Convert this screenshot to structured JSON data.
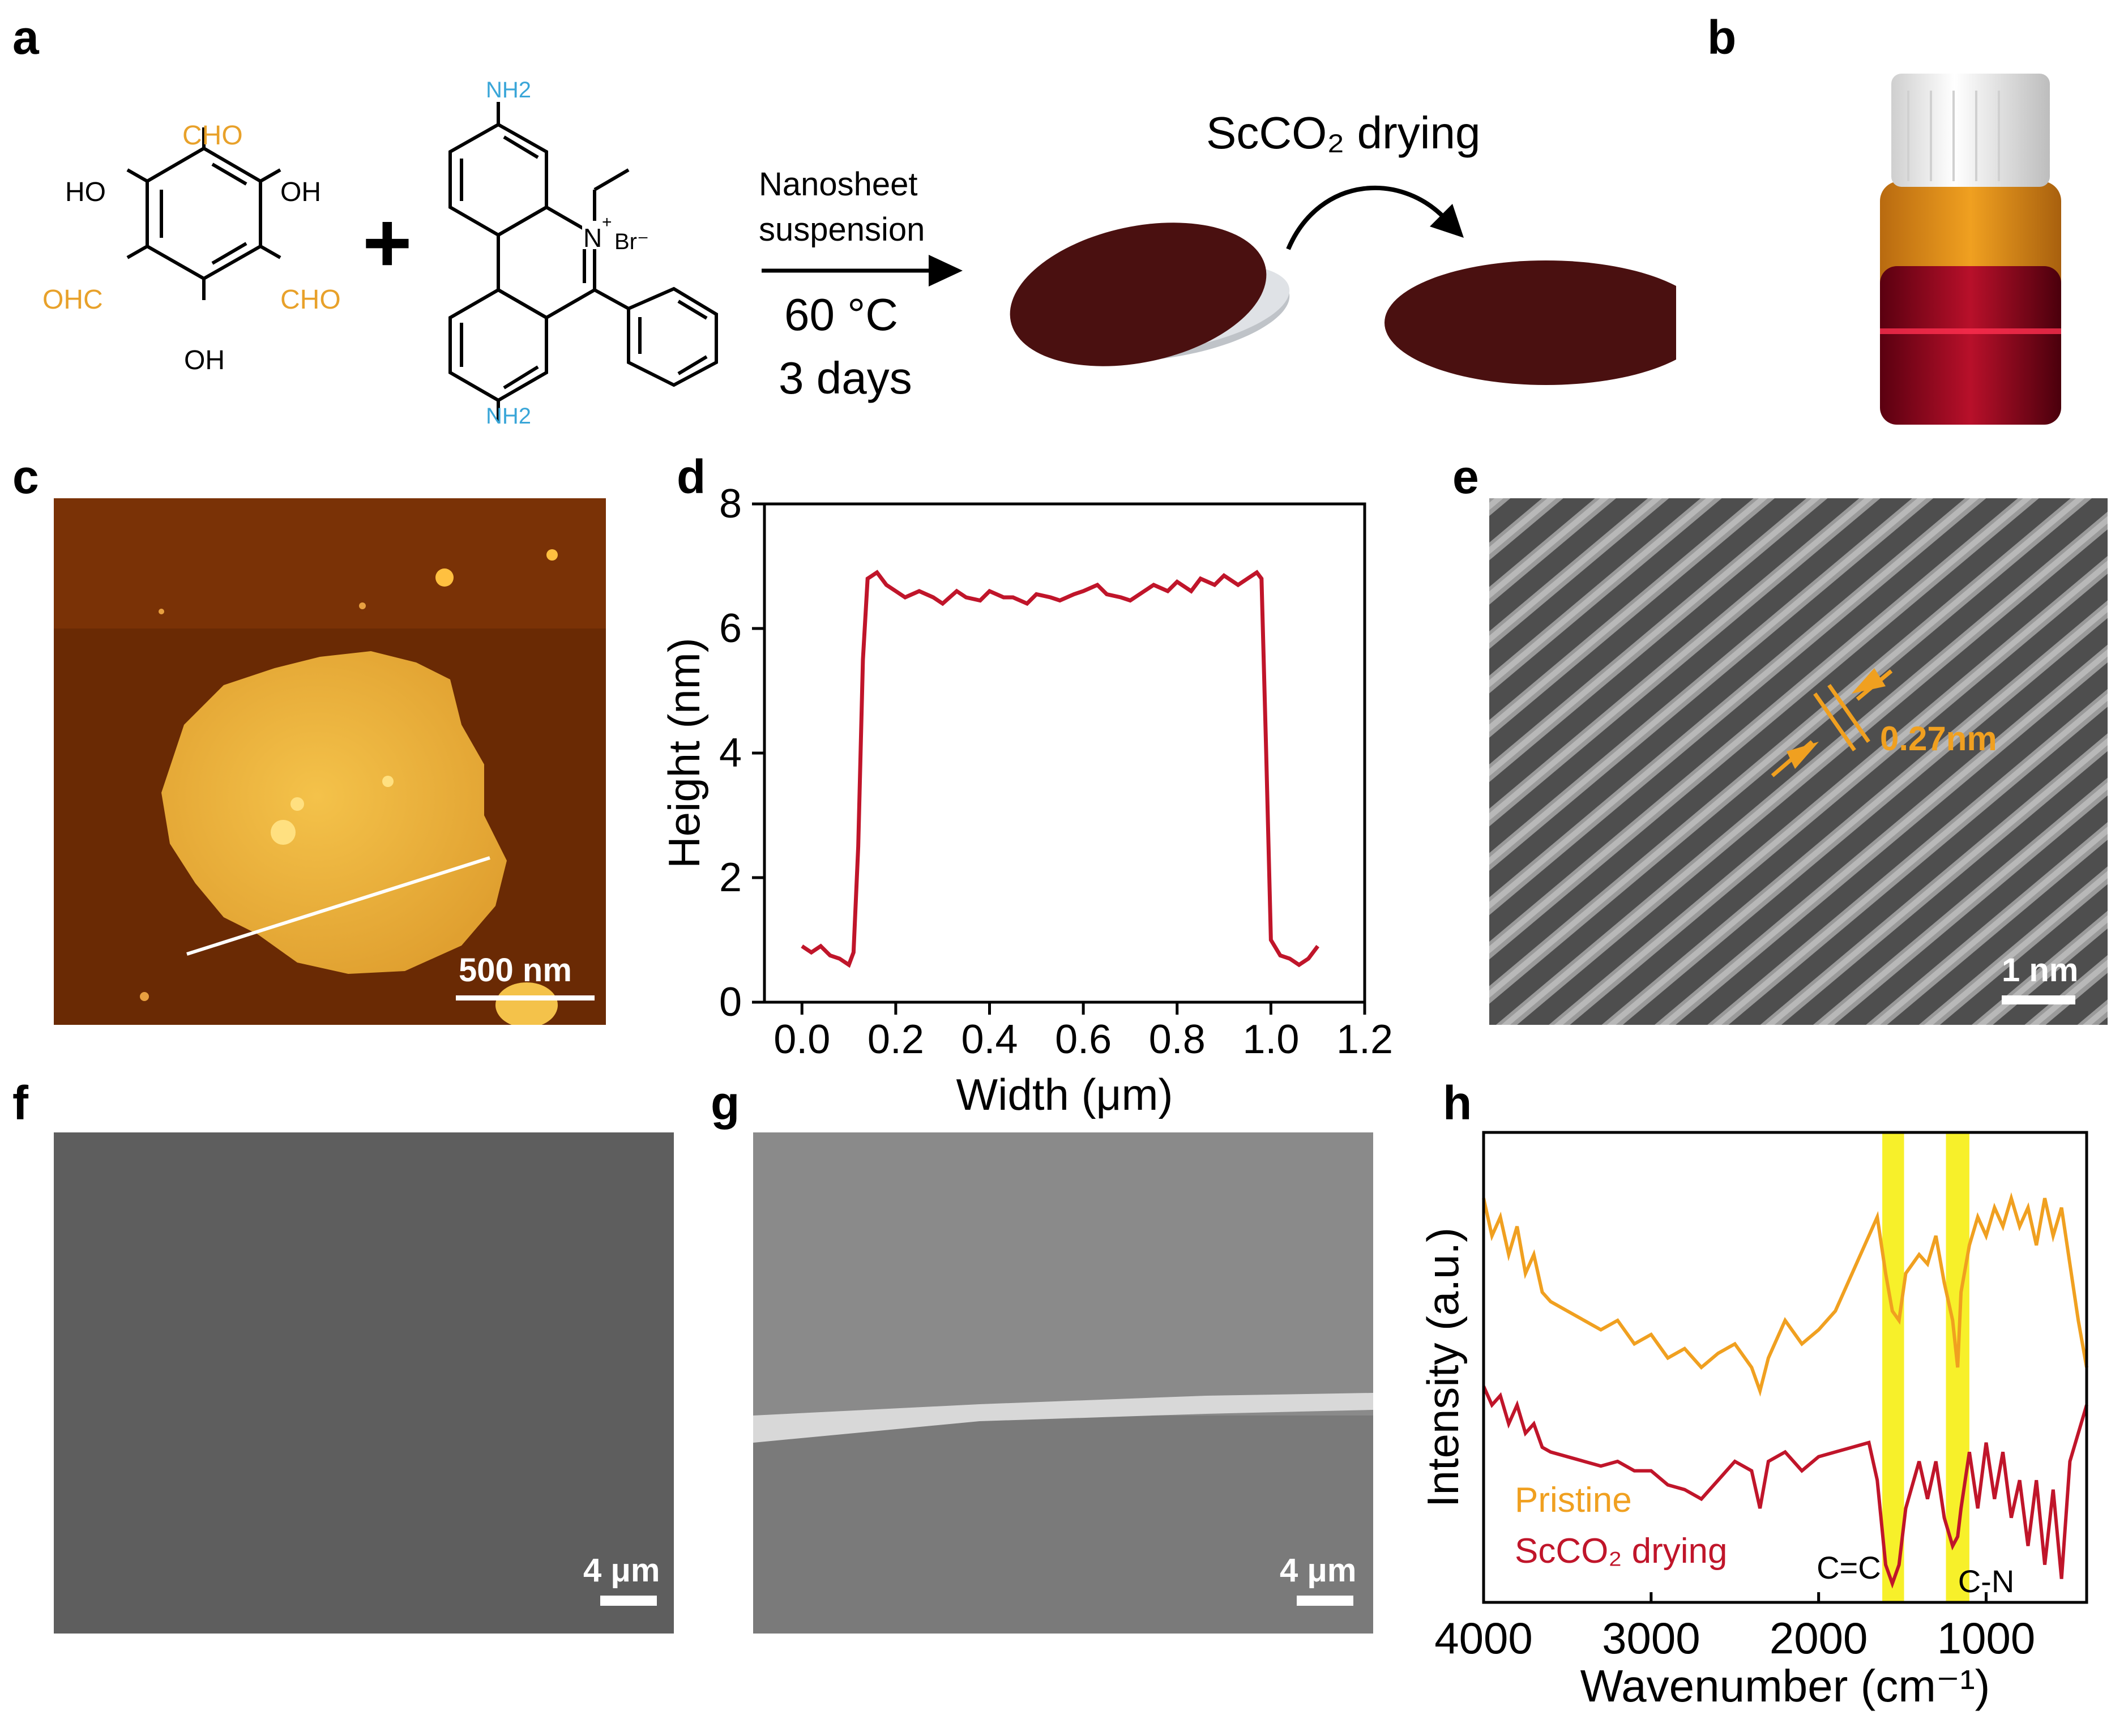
{
  "panel_labels": {
    "a": "a",
    "b": "b",
    "c": "c",
    "d": "d",
    "e": "e",
    "f": "f",
    "g": "g",
    "h": "h"
  },
  "colors": {
    "aldehyde": "#e8a12a",
    "amine": "#3aa6d8",
    "membrane": "#4a1010",
    "trace_red": "#c0152a",
    "trace_orange": "#f0a020",
    "highlight": "#f7f02a"
  },
  "scheme": {
    "aldehyde_groups": {
      "top": "CHO",
      "left": "OHC",
      "right": "CHO"
    },
    "hydroxyl_groups": {
      "upper_left": "HO",
      "upper_right": "OH",
      "bottom": "OH"
    },
    "plus": "+",
    "amine_top": "NH2",
    "amine_bottom": "NH2",
    "nitrogen": "N",
    "nitrogen_charge": "+",
    "counterion": "Br⁻",
    "condition_line1": "Nanosheet",
    "condition_line2": "suspension",
    "condition_temp": "60 °C",
    "condition_time": "3 days",
    "drying_label": "ScCO₂ drying"
  },
  "afm": {
    "scale_label": "500 nm"
  },
  "tem": {
    "spacing_label": "0.27nm",
    "scale_label": "1 nm"
  },
  "sem_top": {
    "scale_label": "4 μm"
  },
  "sem_cross": {
    "scale_label": "4 μm"
  },
  "chart_data": [
    {
      "type": "line",
      "panel": "d",
      "xlabel": "Width (μm)",
      "ylabel": "Height (nm)",
      "xlim": [
        -0.08,
        1.2
      ],
      "ylim": [
        0,
        8
      ],
      "xticks": [
        0.0,
        0.2,
        0.4,
        0.6,
        0.8,
        1.0,
        1.2
      ],
      "yticks": [
        0,
        2,
        4,
        6,
        8
      ],
      "xtick_labels": [
        "0.0",
        "0.2",
        "0.4",
        "0.6",
        "0.8",
        "1.0",
        "1.2"
      ],
      "ytick_labels": [
        "0",
        "2",
        "4",
        "6",
        "8"
      ],
      "series": [
        {
          "color": "#c0152a",
          "x": [
            0.0,
            0.02,
            0.04,
            0.06,
            0.08,
            0.1,
            0.11,
            0.12,
            0.13,
            0.14,
            0.16,
            0.18,
            0.2,
            0.22,
            0.25,
            0.28,
            0.3,
            0.33,
            0.35,
            0.38,
            0.4,
            0.43,
            0.45,
            0.48,
            0.5,
            0.53,
            0.55,
            0.58,
            0.6,
            0.63,
            0.65,
            0.68,
            0.7,
            0.73,
            0.75,
            0.78,
            0.8,
            0.83,
            0.85,
            0.88,
            0.9,
            0.93,
            0.95,
            0.97,
            0.98,
            0.99,
            1.0,
            1.02,
            1.04,
            1.06,
            1.08,
            1.1
          ],
          "y": [
            0.9,
            0.8,
            0.9,
            0.75,
            0.7,
            0.6,
            0.8,
            2.5,
            5.5,
            6.8,
            6.9,
            6.7,
            6.6,
            6.5,
            6.6,
            6.5,
            6.4,
            6.6,
            6.5,
            6.45,
            6.6,
            6.5,
            6.5,
            6.4,
            6.55,
            6.5,
            6.45,
            6.55,
            6.6,
            6.7,
            6.55,
            6.5,
            6.45,
            6.6,
            6.7,
            6.6,
            6.75,
            6.6,
            6.8,
            6.7,
            6.85,
            6.7,
            6.8,
            6.9,
            6.8,
            4.0,
            1.0,
            0.75,
            0.7,
            0.6,
            0.7,
            0.9
          ]
        }
      ]
    },
    {
      "type": "line",
      "panel": "h",
      "xlabel": "Wavenumber (cm⁻¹)",
      "ylabel": "Intensity (a.u.)",
      "xlim": [
        4000,
        400
      ],
      "xticks": [
        4000,
        3000,
        2000,
        1000
      ],
      "xtick_labels": [
        "4000",
        "3000",
        "2000",
        "1000"
      ],
      "annotations": [
        "C=C",
        "C-N"
      ],
      "highlight_bands": [
        [
          1620,
          1490
        ],
        [
          1240,
          1100
        ]
      ],
      "series": [
        {
          "name": "Pristine",
          "color": "#f0a020",
          "x": [
            4000,
            3950,
            3900,
            3850,
            3800,
            3750,
            3700,
            3650,
            3600,
            3500,
            3400,
            3300,
            3200,
            3100,
            3000,
            2900,
            2800,
            2700,
            2600,
            2500,
            2400,
            2350,
            2300,
            2200,
            2100,
            2000,
            1900,
            1800,
            1700,
            1650,
            1600,
            1560,
            1520,
            1480,
            1400,
            1350,
            1300,
            1250,
            1200,
            1170,
            1150,
            1100,
            1050,
            1000,
            950,
            900,
            850,
            800,
            750,
            700,
            650,
            600,
            550,
            500,
            450,
            400
          ],
          "y": [
            0.86,
            0.78,
            0.82,
            0.74,
            0.8,
            0.7,
            0.74,
            0.66,
            0.64,
            0.62,
            0.6,
            0.58,
            0.6,
            0.55,
            0.57,
            0.52,
            0.54,
            0.5,
            0.53,
            0.55,
            0.5,
            0.45,
            0.52,
            0.6,
            0.55,
            0.58,
            0.62,
            0.7,
            0.78,
            0.82,
            0.7,
            0.62,
            0.6,
            0.7,
            0.74,
            0.72,
            0.78,
            0.68,
            0.6,
            0.5,
            0.66,
            0.76,
            0.82,
            0.78,
            0.84,
            0.8,
            0.86,
            0.8,
            0.84,
            0.76,
            0.86,
            0.78,
            0.84,
            0.72,
            0.6,
            0.5
          ]
        },
        {
          "name": "ScCO₂ drying",
          "color": "#c0152a",
          "x": [
            4000,
            3950,
            3900,
            3850,
            3800,
            3750,
            3700,
            3650,
            3600,
            3500,
            3400,
            3300,
            3200,
            3100,
            3000,
            2900,
            2800,
            2700,
            2600,
            2500,
            2400,
            2350,
            2300,
            2200,
            2100,
            2000,
            1900,
            1800,
            1700,
            1650,
            1600,
            1560,
            1520,
            1480,
            1400,
            1350,
            1300,
            1250,
            1200,
            1170,
            1150,
            1100,
            1050,
            1000,
            950,
            900,
            850,
            800,
            750,
            700,
            650,
            600,
            550,
            500,
            450,
            400
          ],
          "y": [
            0.46,
            0.42,
            0.44,
            0.38,
            0.42,
            0.36,
            0.38,
            0.33,
            0.32,
            0.31,
            0.3,
            0.29,
            0.3,
            0.28,
            0.28,
            0.25,
            0.24,
            0.22,
            0.26,
            0.3,
            0.28,
            0.2,
            0.3,
            0.32,
            0.28,
            0.31,
            0.32,
            0.33,
            0.34,
            0.26,
            0.08,
            0.04,
            0.08,
            0.2,
            0.3,
            0.22,
            0.3,
            0.18,
            0.12,
            0.14,
            0.2,
            0.32,
            0.2,
            0.34,
            0.22,
            0.32,
            0.18,
            0.26,
            0.12,
            0.26,
            0.08,
            0.24,
            0.05,
            0.3,
            0.36,
            0.42
          ]
        }
      ]
    }
  ]
}
